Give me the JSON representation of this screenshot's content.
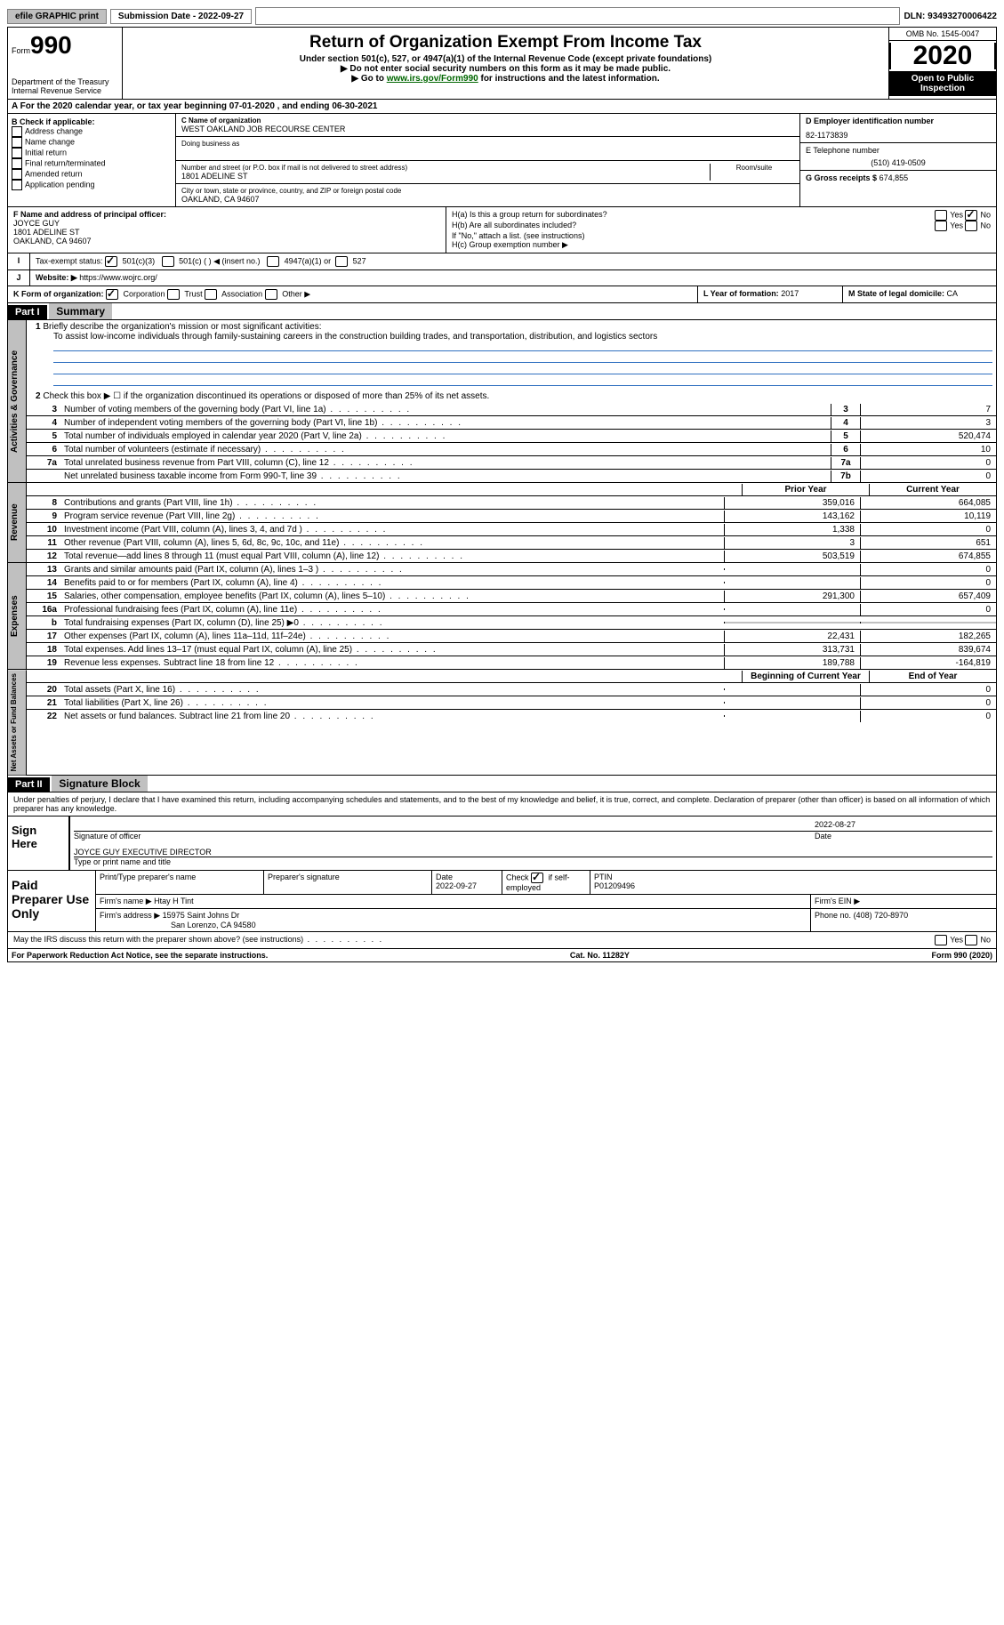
{
  "topbar": {
    "efile": "efile GRAPHIC print",
    "submission": "Submission Date - 2022-09-27",
    "dln": "DLN: 93493270006422"
  },
  "header": {
    "form_label": "Form",
    "form_num": "990",
    "dept": "Department of the Treasury\nInternal Revenue Service",
    "title": "Return of Organization Exempt From Income Tax",
    "subtitle": "Under section 501(c), 527, or 4947(a)(1) of the Internal Revenue Code (except private foundations)",
    "note1": "▶ Do not enter social security numbers on this form as it may be made public.",
    "note2_pre": "▶ Go to ",
    "note2_link": "www.irs.gov/Form990",
    "note2_post": " for instructions and the latest information.",
    "omb": "OMB No. 1545-0047",
    "year": "2020",
    "inspection": "Open to Public Inspection"
  },
  "sectionA": "A For the 2020 calendar year, or tax year beginning 07-01-2020   , and ending 06-30-2021",
  "boxB": {
    "label": "B Check if applicable:",
    "items": [
      "Address change",
      "Name change",
      "Initial return",
      "Final return/terminated",
      "Amended return",
      "Application pending"
    ]
  },
  "boxC": {
    "name_label": "C Name of organization",
    "name": "WEST OAKLAND JOB RECOURSE CENTER",
    "dba": "Doing business as",
    "addr_label": "Number and street (or P.O. box if mail is not delivered to street address)",
    "room": "Room/suite",
    "addr": "1801 ADELINE ST",
    "city_label": "City or town, state or province, country, and ZIP or foreign postal code",
    "city": "OAKLAND, CA  94607"
  },
  "boxD": {
    "label": "D Employer identification number",
    "value": "82-1173839"
  },
  "boxE": {
    "label": "E Telephone number",
    "value": "(510) 419-0509"
  },
  "boxG": {
    "label": "G Gross receipts $",
    "value": "674,855"
  },
  "boxF": {
    "label": "F  Name and address of principal officer:",
    "name": "JOYCE GUY",
    "addr": "1801 ADELINE ST",
    "city": "OAKLAND, CA  94607"
  },
  "boxH": {
    "ha": "H(a)  Is this a group return for subordinates?",
    "hb": "H(b)  Are all subordinates included?",
    "hb_note": "If \"No,\" attach a list. (see instructions)",
    "hc": "H(c)  Group exemption number ▶",
    "yes": "Yes",
    "no": "No"
  },
  "boxI": {
    "label": "Tax-exempt status:",
    "opts": [
      "501(c)(3)",
      "501(c) (  ) ◀ (insert no.)",
      "4947(a)(1) or",
      "527"
    ]
  },
  "boxJ": {
    "label": "Website: ▶",
    "value": "https://www.wojrc.org/"
  },
  "boxK": {
    "label": "K Form of organization:",
    "opts": [
      "Corporation",
      "Trust",
      "Association",
      "Other ▶"
    ]
  },
  "boxL": {
    "label": "L Year of formation:",
    "value": "2017"
  },
  "boxM": {
    "label": "M State of legal domicile:",
    "value": "CA"
  },
  "part1": {
    "header": "Part I",
    "title": "Summary",
    "q1": "Briefly describe the organization's mission or most significant activities:",
    "q1_ans": "To assist low-income individuals through family-sustaining careers in the construction building trades, and transportation, distribution, and logistics sectors",
    "q2": "Check this box ▶ ☐ if the organization discontinued its operations or disposed of more than 25% of its net assets.",
    "rows": [
      {
        "n": "3",
        "t": "Number of voting members of the governing body (Part VI, line 1a)",
        "b": "3",
        "v": "7"
      },
      {
        "n": "4",
        "t": "Number of independent voting members of the governing body (Part VI, line 1b)",
        "b": "4",
        "v": "3"
      },
      {
        "n": "5",
        "t": "Total number of individuals employed in calendar year 2020 (Part V, line 2a)",
        "b": "5",
        "v": "520,474"
      },
      {
        "n": "6",
        "t": "Total number of volunteers (estimate if necessary)",
        "b": "6",
        "v": "10"
      },
      {
        "n": "7a",
        "t": "Total unrelated business revenue from Part VIII, column (C), line 12",
        "b": "7a",
        "v": "0"
      },
      {
        "n": "",
        "t": "Net unrelated business taxable income from Form 990-T, line 39",
        "b": "7b",
        "v": "0"
      }
    ],
    "col_prior": "Prior Year",
    "col_current": "Current Year",
    "rev_rows": [
      {
        "n": "8",
        "t": "Contributions and grants (Part VIII, line 1h)",
        "p": "359,016",
        "c": "664,085"
      },
      {
        "n": "9",
        "t": "Program service revenue (Part VIII, line 2g)",
        "p": "143,162",
        "c": "10,119"
      },
      {
        "n": "10",
        "t": "Investment income (Part VIII, column (A), lines 3, 4, and 7d )",
        "p": "1,338",
        "c": "0"
      },
      {
        "n": "11",
        "t": "Other revenue (Part VIII, column (A), lines 5, 6d, 8c, 9c, 10c, and 11e)",
        "p": "3",
        "c": "651"
      },
      {
        "n": "12",
        "t": "Total revenue—add lines 8 through 11 (must equal Part VIII, column (A), line 12)",
        "p": "503,519",
        "c": "674,855"
      }
    ],
    "exp_rows": [
      {
        "n": "13",
        "t": "Grants and similar amounts paid (Part IX, column (A), lines 1–3 )",
        "p": "",
        "c": "0"
      },
      {
        "n": "14",
        "t": "Benefits paid to or for members (Part IX, column (A), line 4)",
        "p": "",
        "c": "0"
      },
      {
        "n": "15",
        "t": "Salaries, other compensation, employee benefits (Part IX, column (A), lines 5–10)",
        "p": "291,300",
        "c": "657,409"
      },
      {
        "n": "16a",
        "t": "Professional fundraising fees (Part IX, column (A), line 11e)",
        "p": "",
        "c": "0"
      },
      {
        "n": "b",
        "t": "Total fundraising expenses (Part IX, column (D), line 25) ▶0",
        "p": "GRAY",
        "c": "GRAY"
      },
      {
        "n": "17",
        "t": "Other expenses (Part IX, column (A), lines 11a–11d, 11f–24e)",
        "p": "22,431",
        "c": "182,265"
      },
      {
        "n": "18",
        "t": "Total expenses. Add lines 13–17 (must equal Part IX, column (A), line 25)",
        "p": "313,731",
        "c": "839,674"
      },
      {
        "n": "19",
        "t": "Revenue less expenses. Subtract line 18 from line 12",
        "p": "189,788",
        "c": "-164,819"
      }
    ],
    "col_begin": "Beginning of Current Year",
    "col_end": "End of Year",
    "net_rows": [
      {
        "n": "20",
        "t": "Total assets (Part X, line 16)",
        "p": "",
        "c": "0"
      },
      {
        "n": "21",
        "t": "Total liabilities (Part X, line 26)",
        "p": "",
        "c": "0"
      },
      {
        "n": "22",
        "t": "Net assets or fund balances. Subtract line 21 from line 20",
        "p": "",
        "c": "0"
      }
    ],
    "vert_gov": "Activities & Governance",
    "vert_rev": "Revenue",
    "vert_exp": "Expenses",
    "vert_net": "Net Assets or Fund Balances"
  },
  "part2": {
    "header": "Part II",
    "title": "Signature Block",
    "declaration": "Under penalties of perjury, I declare that I have examined this return, including accompanying schedules and statements, and to the best of my knowledge and belief, it is true, correct, and complete. Declaration of preparer (other than officer) is based on all information of which preparer has any knowledge.",
    "sign_here": "Sign Here",
    "sig_officer": "Signature of officer",
    "sig_date": "Date",
    "sig_date_val": "2022-08-27",
    "sig_name": "JOYCE GUY EXECUTIVE DIRECTOR",
    "sig_name_label": "Type or print name and title",
    "paid_prep": "Paid Preparer Use Only",
    "prep_name_label": "Print/Type preparer's name",
    "prep_sig_label": "Preparer's signature",
    "prep_date_label": "Date",
    "prep_date": "2022-09-27",
    "prep_check": "Check ☑ if self-employed",
    "ptin_label": "PTIN",
    "ptin": "P01209496",
    "firm_name_label": "Firm's name   ▶",
    "firm_name": "Htay H Tint",
    "firm_ein_label": "Firm's EIN ▶",
    "firm_addr_label": "Firm's address ▶",
    "firm_addr": "15975 Saint Johns Dr",
    "firm_city": "San Lorenzo, CA  94580",
    "firm_phone_label": "Phone no.",
    "firm_phone": "(408) 720-8970",
    "may_irs": "May the IRS discuss this return with the preparer shown above? (see instructions)"
  },
  "footer": {
    "pra": "For Paperwork Reduction Act Notice, see the separate instructions.",
    "cat": "Cat. No. 11282Y",
    "form": "Form 990 (2020)"
  }
}
